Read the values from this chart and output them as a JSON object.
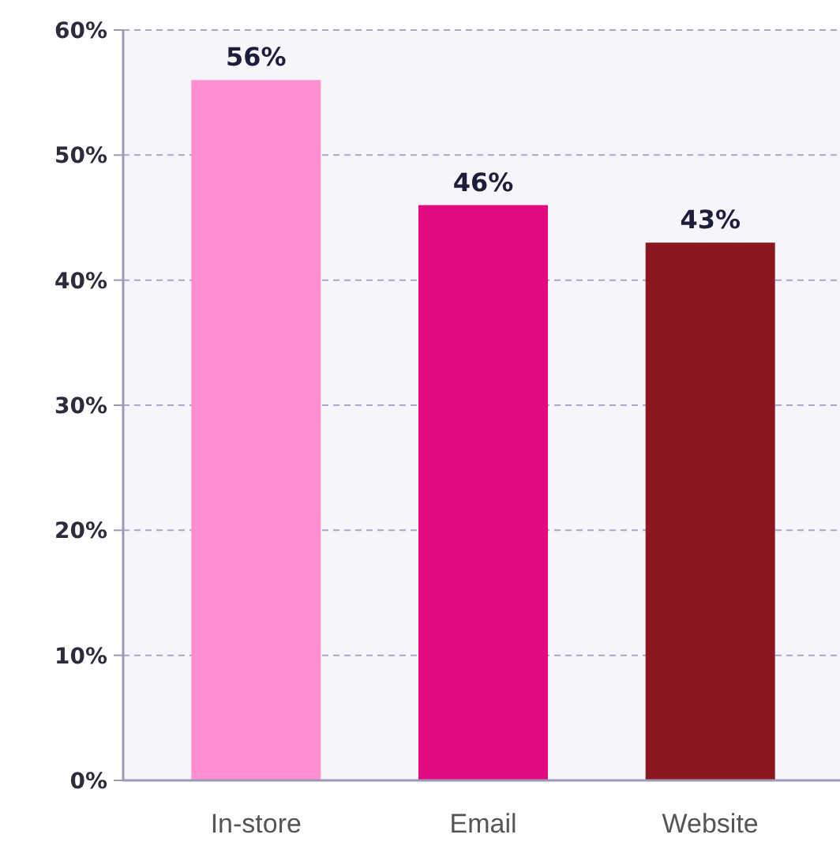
{
  "chart_data": {
    "type": "bar",
    "categories": [
      "In-store",
      "Email",
      "Website"
    ],
    "values": [
      56,
      46,
      43
    ],
    "colors": [
      "#ff8fd0",
      "#e20a80",
      "#8b1820"
    ],
    "value_labels": [
      "56%",
      "46%",
      "43%"
    ],
    "ylim": [
      0,
      60
    ],
    "yticks": [
      {
        "value": 0,
        "label": "0%"
      },
      {
        "value": 10,
        "label": "10%"
      },
      {
        "value": 20,
        "label": "20%"
      },
      {
        "value": 30,
        "label": "30%"
      },
      {
        "value": 40,
        "label": "40%"
      },
      {
        "value": 50,
        "label": "50%"
      },
      {
        "value": 60,
        "label": "60%"
      }
    ],
    "grid": "y"
  }
}
